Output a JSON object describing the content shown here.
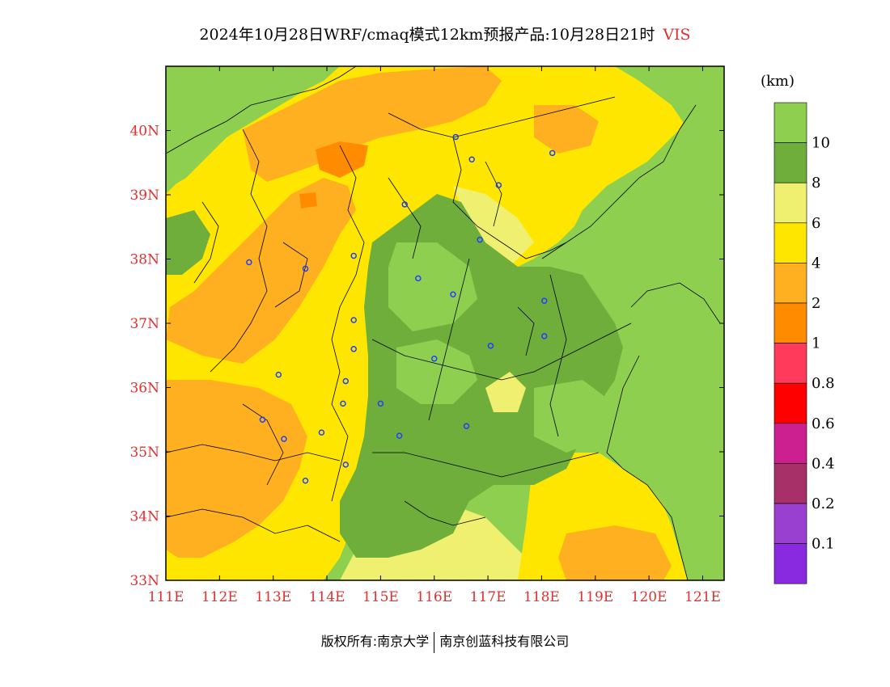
{
  "title": "2024年10月28日WRF/cmaq模式12km预报产品:10月28日21时",
  "variable": "VIS",
  "unit": "(km)",
  "footer": {
    "copyright": "版权所有:南京大学",
    "company": "南京创蓝科技有限公司"
  },
  "map": {
    "lon_range": [
      111,
      121.4
    ],
    "lat_range": [
      33,
      41
    ],
    "x_ticks": [
      "111E",
      "112E",
      "113E",
      "114E",
      "115E",
      "116E",
      "117E",
      "118E",
      "119E",
      "120E",
      "121E"
    ],
    "y_ticks": [
      "33N",
      "34N",
      "35N",
      "36N",
      "37N",
      "38N",
      "39N",
      "40N"
    ],
    "tick_color": "#e03030"
  },
  "legend": {
    "colors": [
      "#8fcf4f",
      "#6fae3a",
      "#f0f070",
      "#ffe600",
      "#ffb020",
      "#ff8c00",
      "#ff3a5a",
      "#ff0000",
      "#cc2090",
      "#a83068",
      "#9a40d0",
      "#8a2ae0"
    ],
    "labels": [
      "10",
      "8",
      "6",
      "4",
      "2",
      "1",
      "0.8",
      "0.6",
      "0.4",
      "0.2",
      "0.1"
    ]
  },
  "stations": [
    [
      116.4,
      39.9
    ],
    [
      116.7,
      39.55
    ],
    [
      118.2,
      39.65
    ],
    [
      117.2,
      39.15
    ],
    [
      115.45,
      38.85
    ],
    [
      116.85,
      38.3
    ],
    [
      112.55,
      37.95
    ],
    [
      113.6,
      37.85
    ],
    [
      114.5,
      38.05
    ],
    [
      115.7,
      37.7
    ],
    [
      116.35,
      37.45
    ],
    [
      118.05,
      37.35
    ],
    [
      114.5,
      37.05
    ],
    [
      114.5,
      36.6
    ],
    [
      118.05,
      36.8
    ],
    [
      117.05,
      36.65
    ],
    [
      116.0,
      36.45
    ],
    [
      113.1,
      36.2
    ],
    [
      114.35,
      36.1
    ],
    [
      115.0,
      35.75
    ],
    [
      114.3,
      35.75
    ],
    [
      116.6,
      35.4
    ],
    [
      113.9,
      35.3
    ],
    [
      112.8,
      35.5
    ],
    [
      113.2,
      35.2
    ],
    [
      115.35,
      35.25
    ],
    [
      114.35,
      34.8
    ],
    [
      113.6,
      34.55
    ]
  ]
}
